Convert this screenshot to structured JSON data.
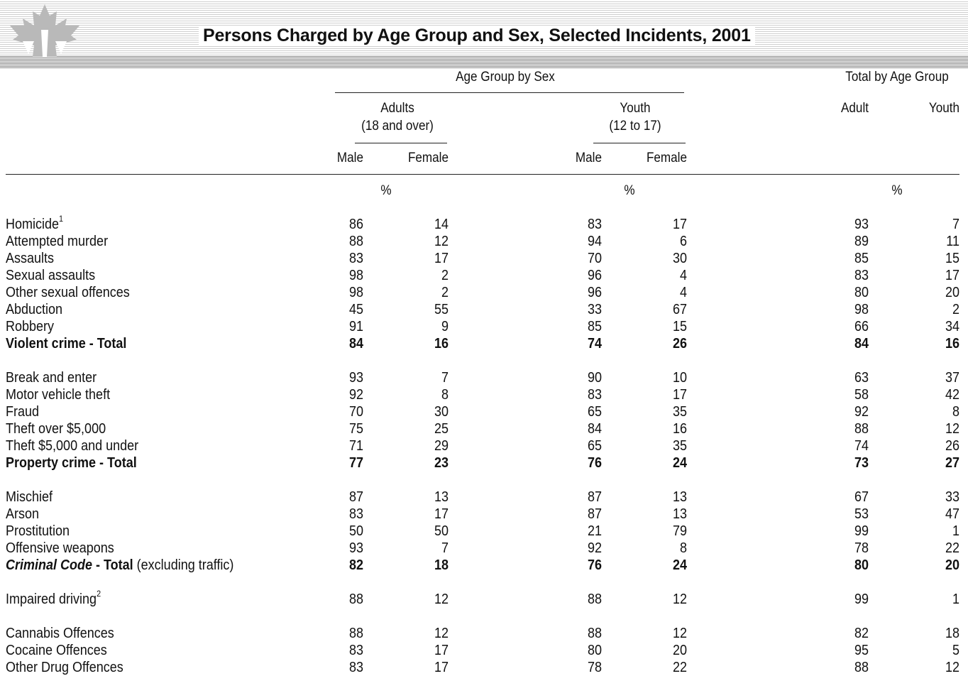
{
  "title": "Persons Charged by Age Group and Sex, Selected Incidents, 2001",
  "header": {
    "age_group_by_sex": "Age Group by Sex",
    "total_by_age_group": "Total by Age Group",
    "adults_line1": "Adults",
    "adults_line2": "(18 and over)",
    "youth_line1": "Youth",
    "youth_line2": "(12 to 17)",
    "adult_total": "Adult",
    "youth_total": "Youth",
    "male1": "Male",
    "female1": "Female",
    "male2": "Male",
    "female2": "Female",
    "pct1": "%",
    "pct2": "%",
    "pct3": "%"
  },
  "rows": [
    {
      "label": "Homicide",
      "sup": "1",
      "am": "86",
      "af": "14",
      "ym": "83",
      "yf": "17",
      "ta": "93",
      "ty": "7",
      "bold": false
    },
    {
      "label": "Attempted murder",
      "sup": "",
      "am": "88",
      "af": "12",
      "ym": "94",
      "yf": "6",
      "ta": "89",
      "ty": "11",
      "bold": false
    },
    {
      "label": "Assaults",
      "sup": "",
      "am": "83",
      "af": "17",
      "ym": "70",
      "yf": "30",
      "ta": "85",
      "ty": "15",
      "bold": false
    },
    {
      "label": "Sexual assaults",
      "sup": "",
      "am": "98",
      "af": "2",
      "ym": "96",
      "yf": "4",
      "ta": "83",
      "ty": "17",
      "bold": false
    },
    {
      "label": "Other sexual offences",
      "sup": "",
      "am": "98",
      "af": "2",
      "ym": "96",
      "yf": "4",
      "ta": "80",
      "ty": "20",
      "bold": false
    },
    {
      "label": "Abduction",
      "sup": "",
      "am": "45",
      "af": "55",
      "ym": "33",
      "yf": "67",
      "ta": "98",
      "ty": "2",
      "bold": false
    },
    {
      "label": "Robbery",
      "sup": "",
      "am": "91",
      "af": "9",
      "ym": "85",
      "yf": "15",
      "ta": "66",
      "ty": "34",
      "bold": false
    },
    {
      "label": "Violent crime - Total",
      "sup": "",
      "am": "84",
      "af": "16",
      "ym": "74",
      "yf": "26",
      "ta": "84",
      "ty": "16",
      "bold": true
    },
    {
      "label": "Break and enter",
      "sup": "",
      "am": "93",
      "af": "7",
      "ym": "90",
      "yf": "10",
      "ta": "63",
      "ty": "37",
      "bold": false
    },
    {
      "label": "Motor vehicle theft",
      "sup": "",
      "am": "92",
      "af": "8",
      "ym": "83",
      "yf": "17",
      "ta": "58",
      "ty": "42",
      "bold": false
    },
    {
      "label": "Fraud",
      "sup": "",
      "am": "70",
      "af": "30",
      "ym": "65",
      "yf": "35",
      "ta": "92",
      "ty": "8",
      "bold": false
    },
    {
      "label": "Theft over $5,000",
      "sup": "",
      "am": "75",
      "af": "25",
      "ym": "84",
      "yf": "16",
      "ta": "88",
      "ty": "12",
      "bold": false
    },
    {
      "label": "Theft $5,000 and under",
      "sup": "",
      "am": "71",
      "af": "29",
      "ym": "65",
      "yf": "35",
      "ta": "74",
      "ty": "26",
      "bold": false
    },
    {
      "label": "Property crime - Total",
      "sup": "",
      "am": "77",
      "af": "23",
      "ym": "76",
      "yf": "24",
      "ta": "73",
      "ty": "27",
      "bold": true
    },
    {
      "label": "Mischief",
      "sup": "",
      "am": "87",
      "af": "13",
      "ym": "87",
      "yf": "13",
      "ta": "67",
      "ty": "33",
      "bold": false
    },
    {
      "label": "Arson",
      "sup": "",
      "am": "83",
      "af": "17",
      "ym": "87",
      "yf": "13",
      "ta": "53",
      "ty": "47",
      "bold": false
    },
    {
      "label": "Prostitution",
      "sup": "",
      "am": "50",
      "af": "50",
      "ym": "21",
      "yf": "79",
      "ta": "99",
      "ty": "1",
      "bold": false
    },
    {
      "label": "Offensive weapons",
      "sup": "",
      "am": "93",
      "af": "7",
      "ym": "92",
      "yf": "8",
      "ta": "78",
      "ty": "22",
      "bold": false
    },
    {
      "label_italic": "Criminal Code",
      "label_bold": " - Total",
      "label_rest": " (excluding traffic)",
      "am": "82",
      "af": "18",
      "ym": "76",
      "yf": "24",
      "ta": "80",
      "ty": "20",
      "special": true
    },
    {
      "label": "Impaired driving",
      "sup": "2",
      "am": "88",
      "af": "12",
      "ym": "88",
      "yf": "12",
      "ta": "99",
      "ty": "1",
      "bold": false
    },
    {
      "label": "Cannabis Offences",
      "sup": "",
      "am": "88",
      "af": "12",
      "ym": "88",
      "yf": "12",
      "ta": "82",
      "ty": "18",
      "bold": false
    },
    {
      "label": "Cocaine Offences",
      "sup": "",
      "am": "83",
      "af": "17",
      "ym": "80",
      "yf": "20",
      "ta": "95",
      "ty": "5",
      "bold": false
    },
    {
      "label": "Other Drug Offences",
      "sup": "",
      "am": "83",
      "af": "17",
      "ym": "78",
      "yf": "22",
      "ta": "88",
      "ty": "12",
      "bold": false
    }
  ]
}
